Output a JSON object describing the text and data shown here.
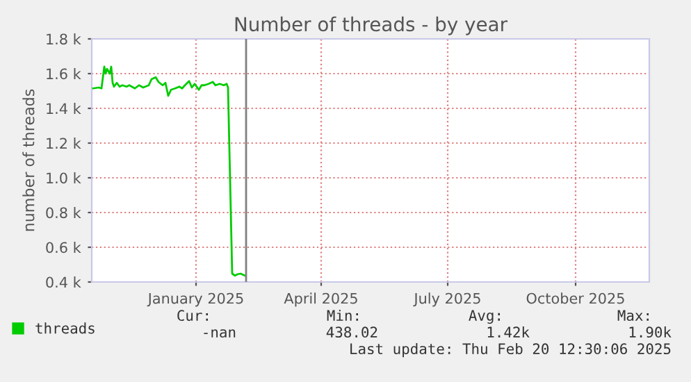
{
  "chart_data": {
    "type": "line",
    "title": "Number of threads - by year",
    "ylabel": "number of threads",
    "x": [
      "2024-10-19",
      "2024-10-23",
      "2024-10-25",
      "2024-10-27",
      "2024-10-28",
      "2024-10-29",
      "2024-10-31",
      "2024-11-01",
      "2024-11-02",
      "2024-11-03",
      "2024-11-05",
      "2024-11-07",
      "2024-11-09",
      "2024-11-12",
      "2024-11-14",
      "2024-11-18",
      "2024-11-21",
      "2024-11-24",
      "2024-11-28",
      "2024-11-30",
      "2024-12-03",
      "2024-12-05",
      "2024-12-08",
      "2024-12-10",
      "2024-12-12",
      "2024-12-14",
      "2024-12-17",
      "2024-12-20",
      "2024-12-22",
      "2024-12-24",
      "2024-12-27",
      "2024-12-29",
      "2024-12-31",
      "2025-01-03",
      "2025-01-05",
      "2025-01-07",
      "2025-01-10",
      "2025-01-13",
      "2025-01-15",
      "2025-01-18",
      "2025-01-21",
      "2025-01-23",
      "2025-01-24",
      "2025-01-27",
      "2025-01-29",
      "2025-01-31",
      "2025-02-02",
      "2025-02-05"
    ],
    "series": [
      {
        "name": "threads",
        "color": "#00cc00",
        "values": [
          1515,
          1520,
          1515,
          1640,
          1600,
          1627,
          1600,
          1640,
          1547,
          1525,
          1547,
          1525,
          1533,
          1525,
          1533,
          1515,
          1533,
          1520,
          1533,
          1568,
          1579,
          1552,
          1533,
          1547,
          1472,
          1507,
          1515,
          1525,
          1515,
          1533,
          1557,
          1520,
          1541,
          1507,
          1533,
          1533,
          1541,
          1552,
          1533,
          1541,
          1533,
          1541,
          1520,
          448,
          437,
          445,
          448,
          437
        ]
      }
    ],
    "xlim": [
      "2024-10-18",
      "2025-11-23"
    ],
    "xticks": [
      {
        "value": "2025-01-01",
        "label": "January 2025"
      },
      {
        "value": "2025-04-01",
        "label": "April 2025"
      },
      {
        "value": "2025-07-01",
        "label": "July 2025"
      },
      {
        "value": "2025-10-01",
        "label": "October 2025"
      }
    ],
    "ylim": [
      400,
      1800
    ],
    "yticks": [
      {
        "value": 400,
        "label": "0.4 k"
      },
      {
        "value": 600,
        "label": "0.6 k"
      },
      {
        "value": 800,
        "label": "0.8 k"
      },
      {
        "value": 1000,
        "label": "1.0 k"
      },
      {
        "value": 1200,
        "label": "1.2 k"
      },
      {
        "value": 1400,
        "label": "1.4 k"
      },
      {
        "value": 1600,
        "label": "1.6 k"
      },
      {
        "value": 1800,
        "label": "1.8 k"
      }
    ],
    "ref_lines": [
      {
        "axis": "x",
        "value": "2025-02-06",
        "label": null,
        "color": "#808080"
      }
    ],
    "grid": true,
    "legend": "bottom left",
    "marker": "none",
    "line_style": "solid",
    "annotations": [
      "Cur:",
      "Min:",
      "Avg:",
      "Max:",
      "-nan",
      "438.02",
      "1.42k",
      "1.90k",
      "Last update: Thu Feb 20 12:30:06 2025"
    ]
  }
}
